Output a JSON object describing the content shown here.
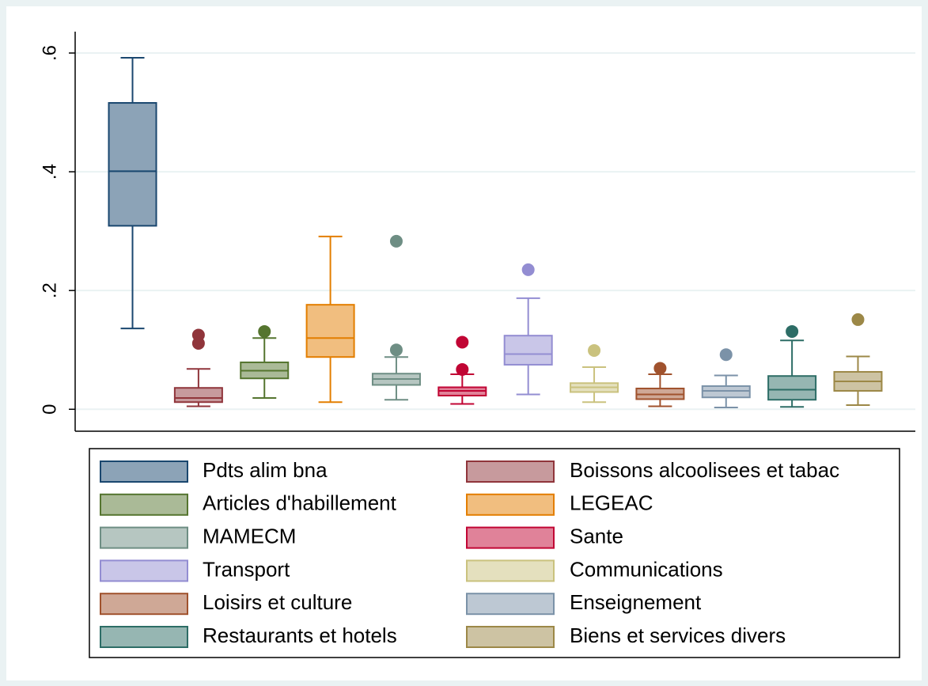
{
  "chart_data": {
    "type": "box",
    "ylim": [
      -0.037,
      0.636
    ],
    "yticks": [
      0,
      {
        "value": 0.2,
        "label": ".2"
      },
      {
        "value": 0.4,
        "label": ".4"
      },
      {
        "value": 0.6,
        "label": ".6"
      }
    ],
    "grid": true,
    "series": [
      {
        "name": "Pdts alim bna",
        "color": "#1a476f",
        "low": 0.136,
        "q1": 0.309,
        "median": 0.401,
        "q3": 0.516,
        "high": 0.592,
        "outliers": []
      },
      {
        "name": "Boissons alcoolisees et tabac",
        "color": "#90353b",
        "low": 0.005,
        "q1": 0.012,
        "median": 0.019,
        "q3": 0.036,
        "high": 0.068,
        "outliers": [
          0.125,
          0.111
        ]
      },
      {
        "name": "Articles d'habillement",
        "color": "#55752f",
        "low": 0.019,
        "q1": 0.052,
        "median": 0.065,
        "q3": 0.079,
        "high": 0.12,
        "outliers": [
          0.131
        ]
      },
      {
        "name": "LEGEAC",
        "color": "#e37e00",
        "low": 0.012,
        "q1": 0.088,
        "median": 0.12,
        "q3": 0.176,
        "high": 0.291,
        "outliers": []
      },
      {
        "name": "MAMECM",
        "color": "#6e8e84",
        "low": 0.016,
        "q1": 0.041,
        "median": 0.051,
        "q3": 0.06,
        "high": 0.088,
        "outliers": [
          0.283,
          0.1
        ]
      },
      {
        "name": "Sante",
        "color": "#c10534",
        "low": 0.009,
        "q1": 0.023,
        "median": 0.031,
        "q3": 0.037,
        "high": 0.059,
        "outliers": [
          0.113,
          0.067
        ]
      },
      {
        "name": "Transport",
        "color": "#938dd2",
        "low": 0.025,
        "q1": 0.075,
        "median": 0.093,
        "q3": 0.124,
        "high": 0.187,
        "outliers": [
          0.235
        ]
      },
      {
        "name": "Communications",
        "color": "#cac27e",
        "low": 0.012,
        "q1": 0.029,
        "median": 0.037,
        "q3": 0.044,
        "high": 0.071,
        "outliers": [
          0.099
        ]
      },
      {
        "name": "Loisirs et culture",
        "color": "#a0522d",
        "low": 0.005,
        "q1": 0.017,
        "median": 0.025,
        "q3": 0.035,
        "high": 0.059,
        "outliers": [
          0.069
        ]
      },
      {
        "name": "Enseignement",
        "color": "#7b92a8",
        "low": 0.003,
        "q1": 0.02,
        "median": 0.031,
        "q3": 0.039,
        "high": 0.057,
        "outliers": [
          0.092
        ]
      },
      {
        "name": "Restaurants et hotels",
        "color": "#2d6d66",
        "low": 0.004,
        "q1": 0.016,
        "median": 0.033,
        "q3": 0.056,
        "high": 0.116,
        "outliers": [
          0.131
        ]
      },
      {
        "name": "Biens et services divers",
        "color": "#9c8847",
        "low": 0.007,
        "q1": 0.031,
        "median": 0.047,
        "q3": 0.063,
        "high": 0.089,
        "outliers": [
          0.151
        ]
      }
    ]
  }
}
